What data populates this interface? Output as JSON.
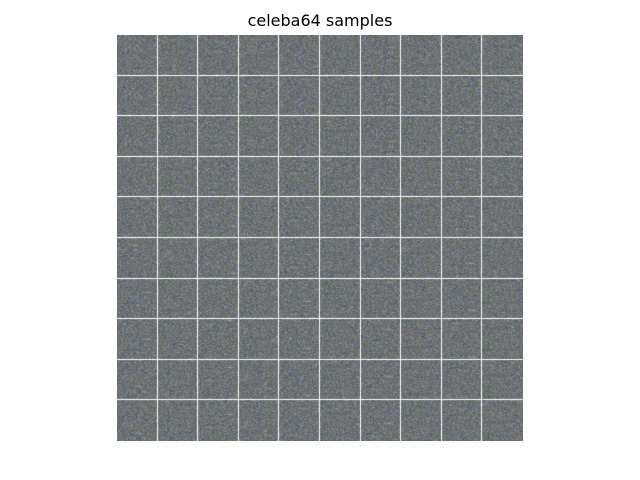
{
  "figure": {
    "title": "celeba64 samples"
  },
  "sample_grid": {
    "rows": 10,
    "cols": 10,
    "background_color": "#6e6e6e",
    "separator_color": "#ffffff",
    "noise_colors": [
      "#3a4fa0",
      "#5f8f4f",
      "#8aa0c8",
      "#4a6a8a",
      "#7a9a6a",
      "#9a8ab0"
    ]
  }
}
